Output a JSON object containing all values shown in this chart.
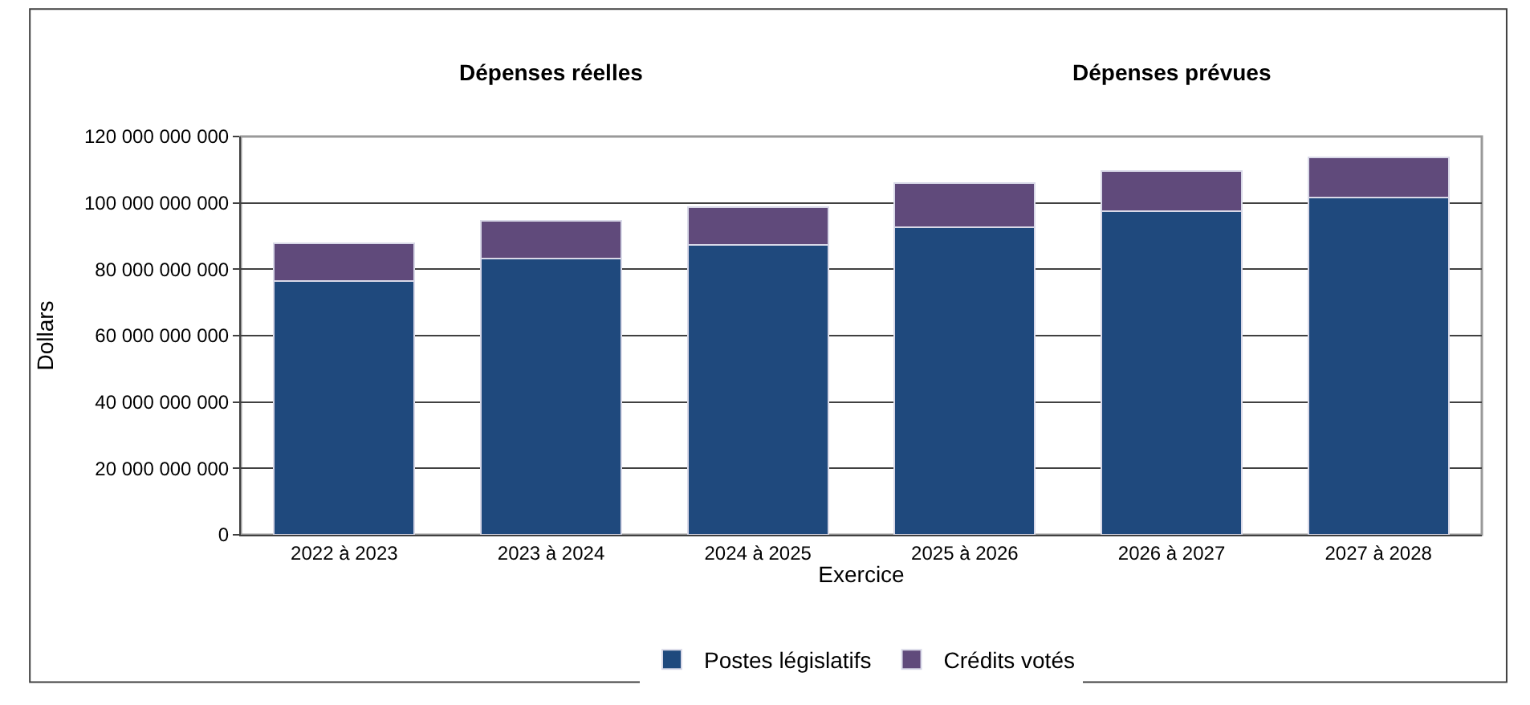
{
  "chart_data": {
    "type": "bar",
    "stacked": true,
    "xlabel": "Exercice",
    "ylabel": "Dollars",
    "annotations": [
      "Dépenses réelles",
      "Dépenses prévues"
    ],
    "categories": [
      "2022 à 2023",
      "2023 à 2024",
      "2024 à 2025",
      "2025 à 2026",
      "2026 à 2027",
      "2027 à 2028"
    ],
    "series": [
      {
        "name": "Postes législatifs",
        "color": "#1f497d",
        "values": [
          76500000000,
          83200000000,
          87300000000,
          92600000000,
          97400000000,
          101700000000
        ]
      },
      {
        "name": "Crédits votés",
        "color": "#604a7b",
        "values": [
          11400000000,
          11400000000,
          11400000000,
          13300000000,
          12100000000,
          11900000000
        ]
      }
    ],
    "ylim": [
      0,
      120000000000
    ],
    "yticks": [
      {
        "value": 0,
        "label": "0"
      },
      {
        "value": 20000000000,
        "label": "20 000 000 000"
      },
      {
        "value": 40000000000,
        "label": "40 000 000 000"
      },
      {
        "value": 60000000000,
        "label": "60 000 000 000"
      },
      {
        "value": 80000000000,
        "label": "80 000 000 000"
      },
      {
        "value": 100000000000,
        "label": "100 000 000 000"
      },
      {
        "value": 120000000000,
        "label": "120 000 000 000"
      }
    ],
    "grid": "y",
    "legend": "bottom"
  }
}
